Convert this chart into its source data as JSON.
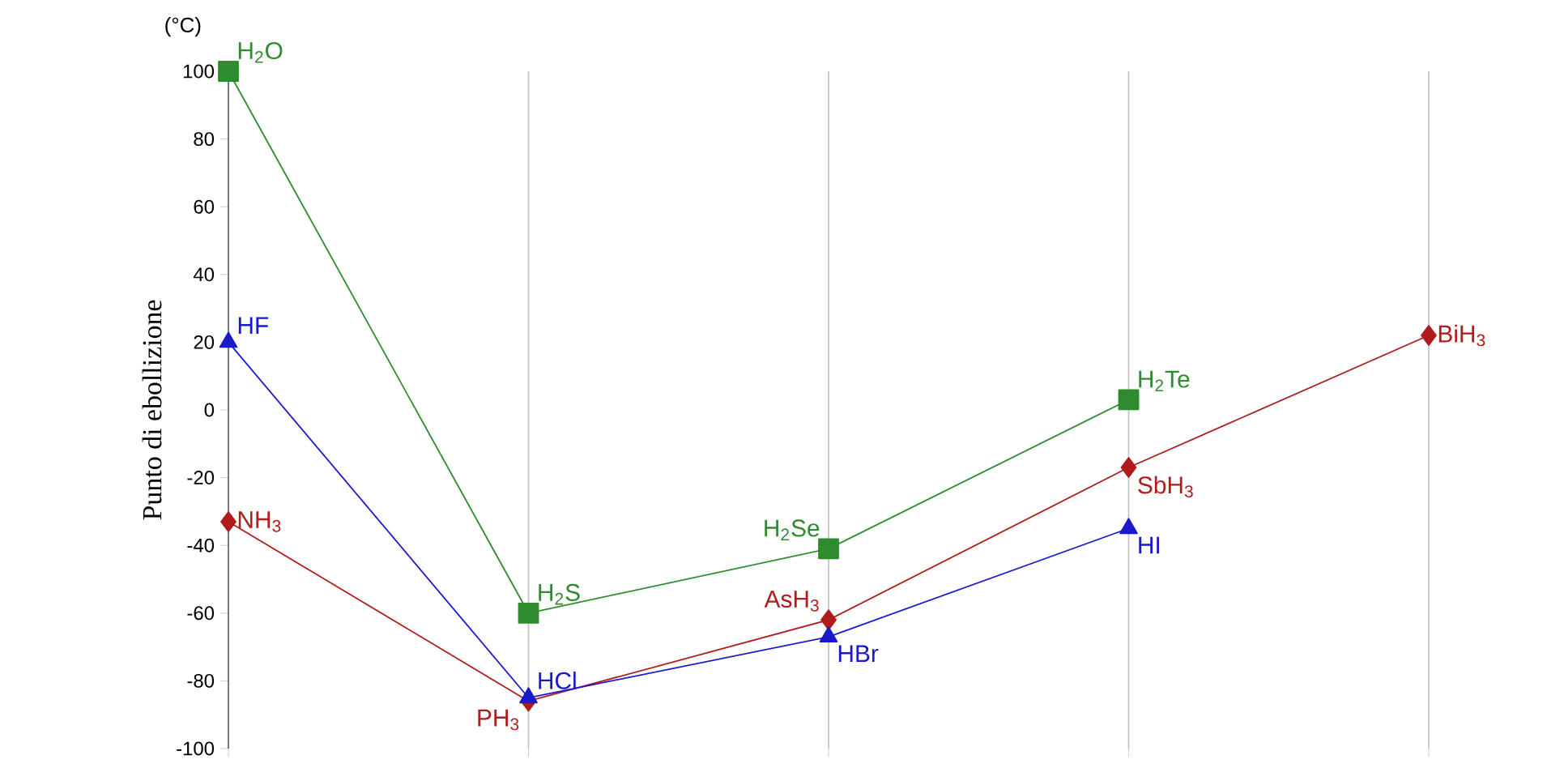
{
  "chart_data": {
    "type": "line",
    "ylabel": "Punto di ebollizione",
    "annotations": [
      "(°C)",
      "H$_{2}$O",
      "H$_{2}$S",
      "H$_{2}$Se",
      "H$_{2}$Te",
      "HF",
      "HCl",
      "HBr",
      "HI",
      "NH$_{3}$",
      "PH$_{3}$",
      "AsH$_{3}$",
      "SbH$_{3}$",
      "BiH$_{3}$"
    ],
    "categories": [
      null,
      null,
      null,
      null,
      null
    ],
    "ylim": [
      -100,
      100
    ],
    "yticks": [
      -100,
      -80,
      -60,
      -40,
      -20,
      0,
      20,
      40,
      60,
      80,
      100
    ],
    "grid": "x",
    "series": [
      {
        "color": "#2e8b2e",
        "marker": "square",
        "values": [
          100,
          -60,
          -41,
          3,
          null
        ]
      },
      {
        "color": "#1a1acc",
        "marker": "triangle",
        "values": [
          20,
          -85,
          -67,
          -35,
          null
        ]
      },
      {
        "color": "#b01c1c",
        "marker": "diamond",
        "values": [
          -33,
          -86,
          -62,
          -17,
          22
        ]
      }
    ]
  }
}
